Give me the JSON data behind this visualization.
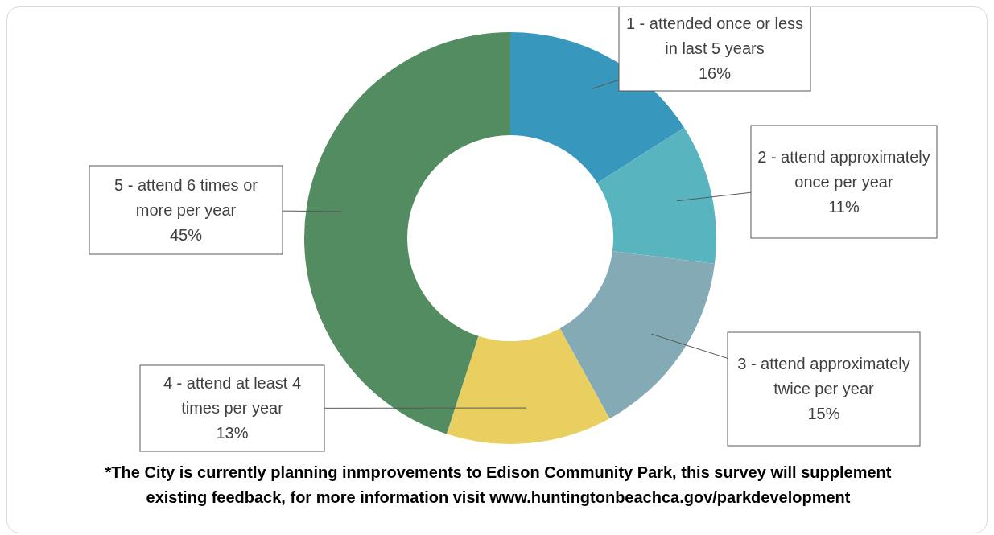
{
  "chart_data": {
    "type": "donut",
    "categories": [
      "1 - attended once or less in last 5 years",
      "2 - attend approximately once per year",
      "3 - attend approximately twice per year",
      "4 - attend at least 4 times per year",
      "5 - attend 6 times or more per year"
    ],
    "values": [
      16,
      11,
      15,
      13,
      45
    ],
    "value_labels": [
      "16%",
      "11%",
      "15%",
      "13%",
      "45%"
    ],
    "colors": [
      "#3897bd",
      "#58b5c0",
      "#84aab5",
      "#e8cf60",
      "#548c62"
    ],
    "legend": false,
    "annotations": [
      "*The City is currently planning inmprovements to Edison Community Park, this survey will supplement existing feedback, for more information visit www.huntingtonbeachca.gov/parkdevelopment"
    ]
  }
}
